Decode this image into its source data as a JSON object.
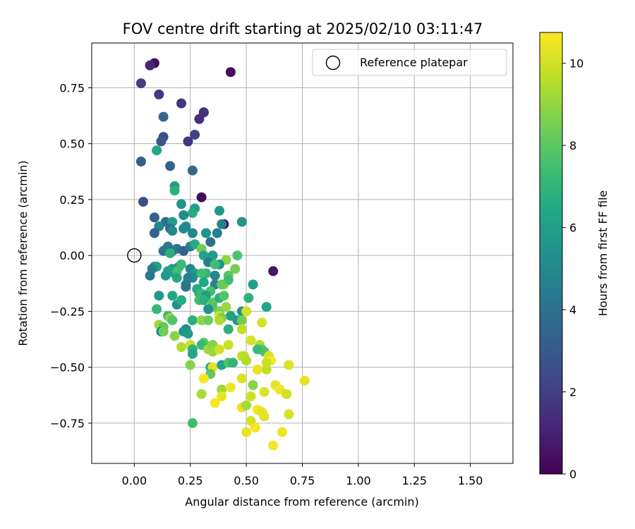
{
  "chart_data": {
    "type": "scatter",
    "title": "FOV centre drift starting at 2025/02/10 03:11:47",
    "xlabel": "Angular distance from reference (arcmin)",
    "ylabel": "Rotation from reference (arcmin)",
    "xlim": [
      -0.19,
      1.69
    ],
    "ylim": [
      -0.93,
      0.95
    ],
    "x_ticks": [
      0.0,
      0.25,
      0.5,
      0.75,
      1.0,
      1.25,
      1.5
    ],
    "x_tick_labels": [
      "0.00",
      "0.25",
      "0.50",
      "0.75",
      "1.00",
      "1.25",
      "1.50"
    ],
    "y_ticks": [
      -0.75,
      -0.5,
      -0.25,
      0.0,
      0.25,
      0.5,
      0.75
    ],
    "y_tick_labels": [
      "−0.75",
      "−0.50",
      "−0.25",
      "0.00",
      "0.25",
      "0.50",
      "0.75"
    ],
    "grid": true,
    "legend": {
      "position": "top-right",
      "entries": [
        "Reference platepar"
      ]
    },
    "reference_point": {
      "x": 0.0,
      "y": 0.0,
      "label": "Reference platepar"
    },
    "colorbar": {
      "label": "Hours from first FF file",
      "range": [
        0,
        10.75
      ],
      "ticks": [
        0,
        2,
        4,
        6,
        8,
        10
      ],
      "tick_labels": [
        "0",
        "2",
        "4",
        "6",
        "8",
        "10"
      ],
      "colormap": "viridis"
    },
    "points": [
      [
        0.09,
        0.86,
        0.4
      ],
      [
        0.07,
        0.85,
        1.1
      ],
      [
        0.43,
        0.82,
        0.3
      ],
      [
        0.03,
        0.77,
        1.9
      ],
      [
        0.11,
        0.72,
        1.7
      ],
      [
        0.21,
        0.68,
        1.6
      ],
      [
        0.31,
        0.64,
        0.2
      ],
      [
        0.31,
        0.64,
        1.5
      ],
      [
        0.29,
        0.61,
        1.4
      ],
      [
        0.13,
        0.62,
        3.5
      ],
      [
        0.13,
        0.53,
        2.6
      ],
      [
        0.12,
        0.51,
        2.9
      ],
      [
        0.27,
        0.54,
        2.1
      ],
      [
        0.24,
        0.51,
        1.7
      ],
      [
        0.1,
        0.47,
        6.4
      ],
      [
        0.03,
        0.42,
        3.2
      ],
      [
        0.16,
        0.4,
        3.4
      ],
      [
        0.26,
        0.38,
        3.6
      ],
      [
        0.18,
        0.31,
        5.9
      ],
      [
        0.18,
        0.29,
        6.8
      ],
      [
        0.3,
        0.26,
        0.3
      ],
      [
        0.04,
        0.24,
        2.5
      ],
      [
        0.21,
        0.23,
        5.4
      ],
      [
        0.27,
        0.21,
        6.0
      ],
      [
        0.26,
        0.19,
        6.6
      ],
      [
        0.38,
        0.2,
        5.7
      ],
      [
        0.22,
        0.18,
        5.2
      ],
      [
        0.09,
        0.17,
        3.4
      ],
      [
        0.14,
        0.15,
        3.8
      ],
      [
        0.17,
        0.15,
        6.0
      ],
      [
        0.11,
        0.13,
        4.9
      ],
      [
        0.16,
        0.12,
        3.9
      ],
      [
        0.17,
        0.11,
        5.0
      ],
      [
        0.22,
        0.12,
        4.8
      ],
      [
        0.23,
        0.13,
        5.1
      ],
      [
        0.4,
        0.14,
        0.5
      ],
      [
        0.39,
        0.14,
        4.7
      ],
      [
        0.48,
        0.15,
        5.5
      ],
      [
        0.32,
        0.1,
        5.4
      ],
      [
        0.37,
        0.1,
        4.5
      ],
      [
        0.09,
        0.1,
        3.5
      ],
      [
        0.26,
        0.1,
        5.0
      ],
      [
        0.15,
        0.04,
        4.6
      ],
      [
        0.13,
        0.02,
        4.0
      ],
      [
        0.17,
        0.02,
        3.9
      ],
      [
        0.19,
        0.03,
        4.2
      ],
      [
        0.22,
        0.02,
        3.4
      ],
      [
        0.25,
        0.04,
        4.5
      ],
      [
        0.27,
        0.05,
        6.5
      ],
      [
        0.34,
        0.06,
        4.0
      ],
      [
        0.3,
        0.03,
        8.4
      ],
      [
        0.16,
        0.01,
        6.8
      ],
      [
        0.31,
        0.0,
        6.1
      ],
      [
        0.35,
        0.0,
        5.9
      ],
      [
        0.41,
        -0.02,
        8.9
      ],
      [
        0.46,
        0.0,
        7.7
      ],
      [
        0.33,
        -0.03,
        4.6
      ],
      [
        0.38,
        -0.04,
        5.6
      ],
      [
        0.36,
        -0.04,
        7.5
      ],
      [
        0.09,
        -0.05,
        5.6
      ],
      [
        0.1,
        -0.05,
        6.1
      ],
      [
        0.08,
        -0.06,
        4.6
      ],
      [
        0.17,
        -0.06,
        5.6
      ],
      [
        0.2,
        -0.05,
        5.2
      ],
      [
        0.25,
        -0.06,
        4.9
      ],
      [
        0.21,
        -0.04,
        7.3
      ],
      [
        0.27,
        -0.08,
        5.8
      ],
      [
        0.62,
        -0.07,
        0.6
      ],
      [
        0.45,
        -0.06,
        8.5
      ],
      [
        0.32,
        -0.08,
        7.0
      ],
      [
        0.3,
        -0.08,
        7.5
      ],
      [
        0.15,
        -0.07,
        6.1
      ],
      [
        0.14,
        -0.09,
        5.8
      ],
      [
        0.07,
        -0.09,
        4.4
      ],
      [
        0.18,
        -0.08,
        6.0
      ],
      [
        0.19,
        -0.07,
        7.4
      ],
      [
        0.36,
        -0.09,
        5.0
      ],
      [
        0.42,
        -0.09,
        7.9
      ],
      [
        0.26,
        -0.1,
        5.2
      ],
      [
        0.23,
        -0.13,
        4.2
      ],
      [
        0.19,
        -0.1,
        6.5
      ],
      [
        0.24,
        -0.1,
        4.5
      ],
      [
        0.23,
        -0.14,
        4.1
      ],
      [
        0.31,
        -0.12,
        6.4
      ],
      [
        0.36,
        -0.13,
        4.8
      ],
      [
        0.4,
        -0.13,
        9.0
      ],
      [
        0.42,
        -0.11,
        7.3
      ],
      [
        0.28,
        -0.15,
        6.5
      ],
      [
        0.29,
        -0.17,
        6.8
      ],
      [
        0.3,
        -0.17,
        7.2
      ],
      [
        0.34,
        -0.16,
        7.5
      ],
      [
        0.39,
        -0.13,
        8.2
      ],
      [
        0.32,
        -0.18,
        5.9
      ],
      [
        0.11,
        -0.18,
        5.7
      ],
      [
        0.17,
        -0.18,
        6.3
      ],
      [
        0.29,
        -0.2,
        7.5
      ],
      [
        0.31,
        -0.2,
        6.8
      ],
      [
        0.35,
        -0.21,
        8.0
      ],
      [
        0.38,
        -0.19,
        6.8
      ],
      [
        0.4,
        -0.18,
        7.8
      ],
      [
        0.51,
        -0.19,
        6.9
      ],
      [
        0.53,
        -0.13,
        6.1
      ],
      [
        0.19,
        -0.22,
        5.4
      ],
      [
        0.21,
        -0.2,
        6.6
      ],
      [
        0.35,
        -0.23,
        7.8
      ],
      [
        0.33,
        -0.24,
        5.4
      ],
      [
        0.1,
        -0.24,
        7.1
      ],
      [
        0.59,
        -0.23,
        6.2
      ],
      [
        0.38,
        -0.25,
        8.4
      ],
      [
        0.38,
        -0.27,
        10.0
      ],
      [
        0.41,
        -0.23,
        9.1
      ],
      [
        0.48,
        -0.25,
        5.4
      ],
      [
        0.5,
        -0.25,
        10.0
      ],
      [
        0.43,
        -0.27,
        6.2
      ],
      [
        0.15,
        -0.27,
        7.3
      ],
      [
        0.16,
        -0.28,
        8.9
      ],
      [
        0.17,
        -0.29,
        7.8
      ],
      [
        0.26,
        -0.29,
        6.8
      ],
      [
        0.3,
        -0.29,
        8.9
      ],
      [
        0.33,
        -0.29,
        8.4
      ],
      [
        0.39,
        -0.28,
        8.5
      ],
      [
        0.46,
        -0.29,
        5.8
      ],
      [
        0.48,
        -0.29,
        8.4
      ],
      [
        0.38,
        -0.29,
        9.4
      ],
      [
        0.11,
        -0.31,
        9.2
      ],
      [
        0.13,
        -0.32,
        8.0
      ],
      [
        0.23,
        -0.33,
        5.0
      ],
      [
        0.12,
        -0.34,
        4.8
      ],
      [
        0.13,
        -0.34,
        8.4
      ],
      [
        0.22,
        -0.34,
        5.4
      ],
      [
        0.24,
        -0.35,
        6.0
      ],
      [
        0.18,
        -0.36,
        8.8
      ],
      [
        0.42,
        -0.33,
        6.8
      ],
      [
        0.48,
        -0.33,
        9.7
      ],
      [
        0.57,
        -0.3,
        10.1
      ],
      [
        0.25,
        -0.4,
        9.9
      ],
      [
        0.21,
        -0.41,
        9.5
      ],
      [
        0.26,
        -0.42,
        6.9
      ],
      [
        0.31,
        -0.39,
        7.9
      ],
      [
        0.3,
        -0.4,
        7.2
      ],
      [
        0.33,
        -0.42,
        9.2
      ],
      [
        0.35,
        -0.4,
        8.8
      ],
      [
        0.35,
        -0.43,
        9.1
      ],
      [
        0.38,
        -0.42,
        10.0
      ],
      [
        0.42,
        -0.4,
        9.9
      ],
      [
        0.52,
        -0.38,
        10.1
      ],
      [
        0.56,
        -0.4,
        9.5
      ],
      [
        0.57,
        -0.42,
        8.2
      ],
      [
        0.58,
        -0.43,
        7.7
      ],
      [
        0.55,
        -0.42,
        7.3
      ],
      [
        0.26,
        -0.44,
        6.4
      ],
      [
        0.25,
        -0.49,
        8.8
      ],
      [
        0.34,
        -0.5,
        6.5
      ],
      [
        0.35,
        -0.5,
        10.3
      ],
      [
        0.34,
        -0.53,
        8.1
      ],
      [
        0.39,
        -0.49,
        6.2
      ],
      [
        0.42,
        -0.48,
        7.7
      ],
      [
        0.44,
        -0.48,
        7.0
      ],
      [
        0.48,
        -0.45,
        9.9
      ],
      [
        0.49,
        -0.45,
        9.6
      ],
      [
        0.5,
        -0.47,
        9.5
      ],
      [
        0.6,
        -0.45,
        10.1
      ],
      [
        0.61,
        -0.47,
        10.6
      ],
      [
        0.55,
        -0.51,
        10.4
      ],
      [
        0.59,
        -0.48,
        9.9
      ],
      [
        0.59,
        -0.51,
        9.8
      ],
      [
        0.69,
        -0.49,
        10.2
      ],
      [
        0.31,
        -0.55,
        10.6
      ],
      [
        0.48,
        -0.55,
        10.2
      ],
      [
        0.53,
        -0.58,
        8.8
      ],
      [
        0.52,
        -0.63,
        9.9
      ],
      [
        0.58,
        -0.61,
        10.2
      ],
      [
        0.63,
        -0.58,
        10.3
      ],
      [
        0.65,
        -0.6,
        10.5
      ],
      [
        0.68,
        -0.62,
        10.0
      ],
      [
        0.76,
        -0.56,
        10.4
      ],
      [
        0.3,
        -0.62,
        9.4
      ],
      [
        0.36,
        -0.66,
        10.7
      ],
      [
        0.39,
        -0.6,
        9.2
      ],
      [
        0.39,
        -0.63,
        10.4
      ],
      [
        0.43,
        -0.59,
        10.5
      ],
      [
        0.48,
        -0.68,
        10.4
      ],
      [
        0.5,
        -0.67,
        9.3
      ],
      [
        0.55,
        -0.69,
        10.6
      ],
      [
        0.57,
        -0.7,
        10.3
      ],
      [
        0.58,
        -0.72,
        10.3
      ],
      [
        0.69,
        -0.71,
        10.1
      ],
      [
        0.52,
        -0.74,
        10.0
      ],
      [
        0.54,
        -0.77,
        10.6
      ],
      [
        0.5,
        -0.79,
        10.4
      ],
      [
        0.66,
        -0.79,
        10.5
      ],
      [
        0.62,
        -0.85,
        10.6
      ],
      [
        0.26,
        -0.75,
        7.4
      ]
    ]
  }
}
